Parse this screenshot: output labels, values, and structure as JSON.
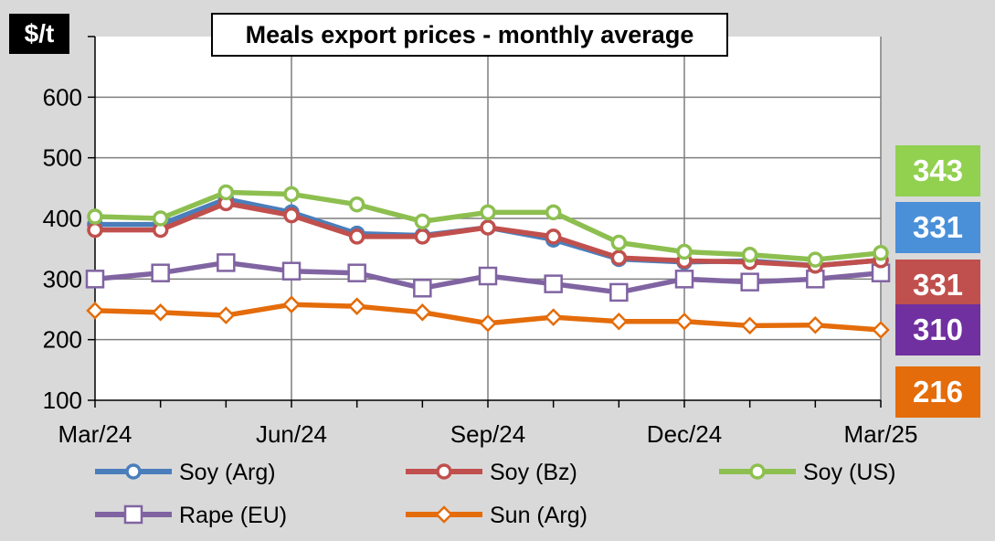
{
  "chart_data": {
    "type": "line",
    "title": "Meals export prices - monthly average",
    "unit": "$/t",
    "x": [
      "Mar/24",
      "Apr/24",
      "May/24",
      "Jun/24",
      "Jul/24",
      "Aug/24",
      "Sep/24",
      "Oct/24",
      "Nov/24",
      "Dec/24",
      "Jan/25",
      "Feb/25",
      "Mar/25"
    ],
    "x_tick_labels": [
      "Mar/24",
      "Jun/24",
      "Sep/24",
      "Dec/24",
      "Mar/25"
    ],
    "y_ticks": [
      100,
      200,
      300,
      400,
      500,
      600
    ],
    "ylim": [
      100,
      700
    ],
    "grid": true,
    "legend_position": "bottom",
    "series": [
      {
        "name": "Soy (Arg)",
        "color": "#4a7ebb",
        "marker": "circle",
        "values": [
          390,
          390,
          432,
          410,
          375,
          372,
          385,
          365,
          333,
          328,
          330,
          322,
          331
        ]
      },
      {
        "name": "Soy (Bz)",
        "color": "#c0504d",
        "marker": "circle",
        "values": [
          381,
          381,
          425,
          405,
          370,
          370,
          385,
          370,
          335,
          330,
          328,
          322,
          331
        ]
      },
      {
        "name": "Soy (US)",
        "color": "#8dbf50",
        "marker": "circle",
        "values": [
          403,
          400,
          443,
          440,
          423,
          395,
          410,
          410,
          360,
          345,
          340,
          332,
          343
        ]
      },
      {
        "name": "Rape (EU)",
        "color": "#8064a2",
        "marker": "square",
        "values": [
          300,
          310,
          327,
          313,
          310,
          285,
          305,
          292,
          278,
          300,
          295,
          300,
          310
        ]
      },
      {
        "name": "Sun (Arg)",
        "color": "#e46c0a",
        "marker": "diamond",
        "values": [
          248,
          245,
          240,
          258,
          255,
          245,
          227,
          237,
          230,
          230,
          223,
          224,
          216
        ]
      }
    ],
    "end_labels": [
      {
        "text": "343",
        "color": "#92d050"
      },
      {
        "text": "331",
        "color": "#4a90d9"
      },
      {
        "text": "331",
        "color": "#c0504d"
      },
      {
        "text": "310",
        "color": "#7030a0"
      },
      {
        "text": "216",
        "color": "#e46c0a"
      }
    ]
  }
}
